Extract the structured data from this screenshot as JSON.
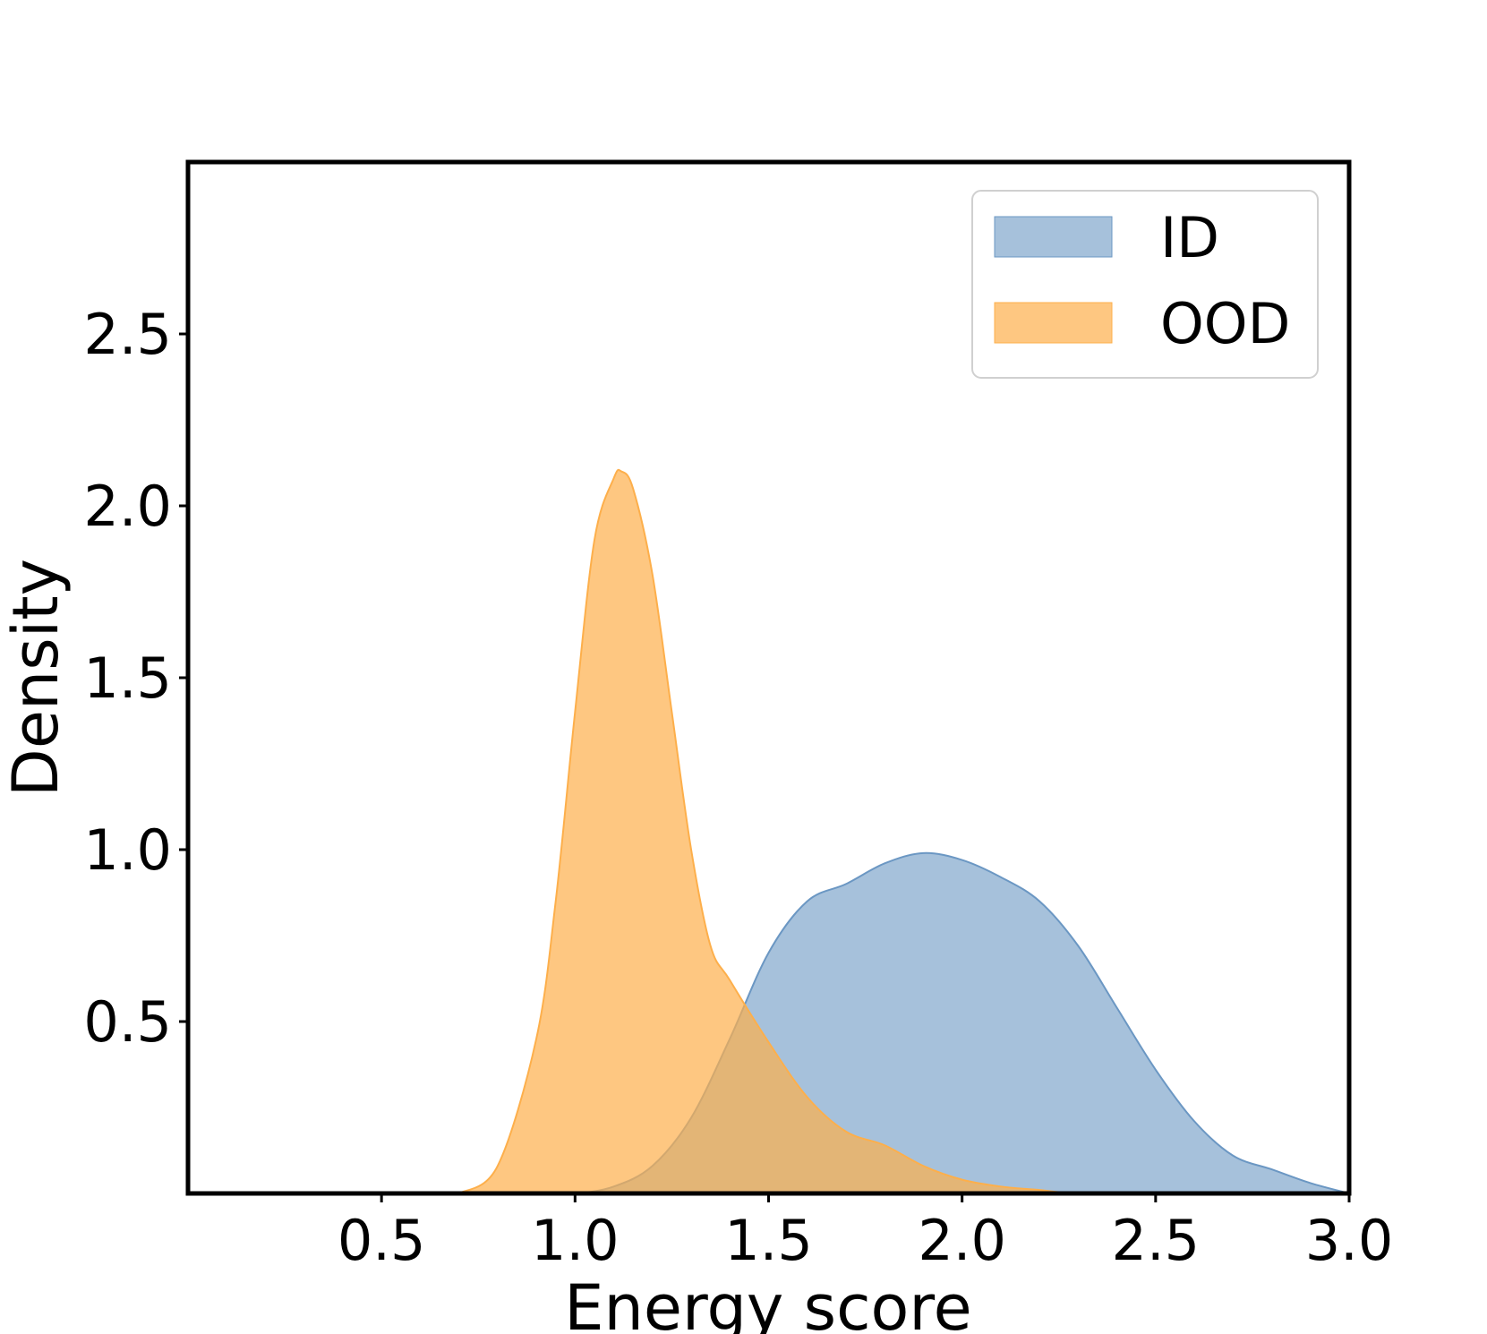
{
  "chart_data": {
    "type": "area",
    "title": "",
    "xlabel": "Energy score",
    "ylabel": "Density",
    "xlim": [
      0.0,
      3.0
    ],
    "ylim": [
      0.0,
      3.0
    ],
    "xticks": [
      "0.5",
      "1.0",
      "1.5",
      "2.0",
      "2.5",
      "3.0"
    ],
    "yticks": [
      "0.5",
      "1.0",
      "1.5",
      "2.0",
      "2.5"
    ],
    "grid": false,
    "legend_position": "top-right",
    "series": [
      {
        "name": "ID",
        "color": "#6b97c3",
        "x": [
          0.7,
          0.9,
          1.0,
          1.1,
          1.2,
          1.3,
          1.4,
          1.5,
          1.6,
          1.7,
          1.8,
          1.9,
          2.0,
          2.1,
          2.2,
          2.3,
          2.4,
          2.5,
          2.6,
          2.7,
          2.8,
          2.9,
          3.0
        ],
        "y": [
          0.0,
          0.0,
          0.0,
          0.02,
          0.08,
          0.22,
          0.45,
          0.7,
          0.85,
          0.9,
          0.96,
          0.99,
          0.97,
          0.92,
          0.85,
          0.72,
          0.54,
          0.36,
          0.21,
          0.11,
          0.07,
          0.03,
          0.0
        ]
      },
      {
        "name": "OOD",
        "color": "#fdaf4b",
        "x": [
          0.7,
          0.8,
          0.9,
          0.95,
          1.0,
          1.05,
          1.1,
          1.12,
          1.15,
          1.2,
          1.25,
          1.3,
          1.35,
          1.4,
          1.5,
          1.6,
          1.7,
          1.8,
          1.9,
          2.0,
          2.1,
          2.2,
          2.3,
          2.5,
          3.0
        ],
        "y": [
          0.0,
          0.08,
          0.45,
          0.85,
          1.4,
          1.9,
          2.08,
          2.1,
          2.05,
          1.8,
          1.4,
          1.0,
          0.72,
          0.62,
          0.44,
          0.28,
          0.18,
          0.14,
          0.08,
          0.04,
          0.02,
          0.01,
          0.0,
          0.0,
          0.0
        ]
      }
    ]
  }
}
